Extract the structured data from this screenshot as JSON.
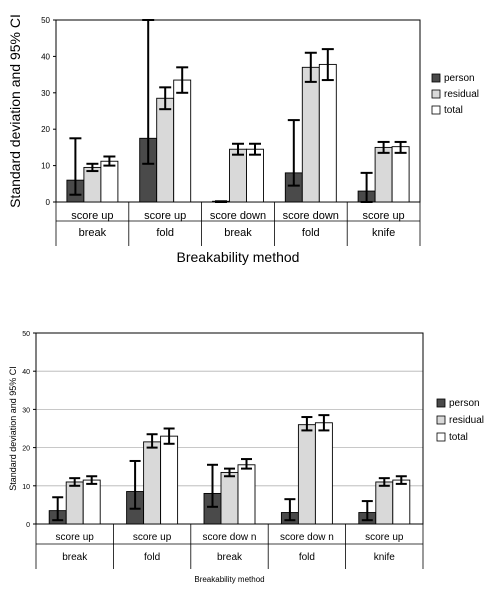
{
  "chart_data": [
    {
      "type": "bar",
      "title": "",
      "ylabel": "Standard deviation and 95% CI",
      "xlabel": "Breakability method",
      "ylim": [
        0,
        50
      ],
      "yticks": [
        0,
        10,
        20,
        30,
        40,
        50
      ],
      "grid": false,
      "legend_position": "right",
      "categories": [
        {
          "top": "score up",
          "bottom": "break"
        },
        {
          "top": "score up",
          "bottom": "fold"
        },
        {
          "top": "score down",
          "bottom": "break"
        },
        {
          "top": "score down",
          "bottom": "fold"
        },
        {
          "top": "score up",
          "bottom": "knife"
        }
      ],
      "series": [
        {
          "name": "person",
          "color": "#4a4a4a",
          "values": [
            6,
            17.5,
            0.2,
            8,
            3
          ],
          "ci_low": [
            2,
            10.5,
            0,
            4.5,
            0
          ],
          "ci_high": [
            17.5,
            50,
            0.2,
            22.5,
            8
          ]
        },
        {
          "name": "residual",
          "color": "#d9d9d9",
          "values": [
            9.5,
            28.5,
            14.5,
            37,
            15
          ],
          "ci_low": [
            8.5,
            25.5,
            13,
            33,
            13.5
          ],
          "ci_high": [
            10.5,
            31.5,
            16,
            41,
            16.5
          ]
        },
        {
          "name": "total",
          "color": "#ffffff",
          "values": [
            11.2,
            33.5,
            14.5,
            37.8,
            15.2
          ],
          "ci_low": [
            10,
            30,
            13,
            33.5,
            13.5
          ],
          "ci_high": [
            12.5,
            37,
            16,
            42,
            16.5
          ]
        }
      ]
    },
    {
      "type": "bar",
      "title": "",
      "ylabel": "Standard deviation and 95% CI",
      "xlabel": "Breakability method",
      "ylim": [
        0,
        50
      ],
      "yticks": [
        0,
        10,
        20,
        30,
        40,
        50
      ],
      "grid": true,
      "legend_position": "right",
      "categories": [
        {
          "top": "score up",
          "bottom": "break"
        },
        {
          "top": "score up",
          "bottom": "fold"
        },
        {
          "top": "score dow n",
          "bottom": "break"
        },
        {
          "top": "score dow n",
          "bottom": "fold"
        },
        {
          "top": "score up",
          "bottom": "knife"
        }
      ],
      "series": [
        {
          "name": "person",
          "color": "#4a4a4a",
          "values": [
            3.5,
            8.5,
            8,
            3,
            3
          ],
          "ci_low": [
            1,
            4,
            4.5,
            1,
            1
          ],
          "ci_high": [
            7,
            16.5,
            15.5,
            6.5,
            6
          ]
        },
        {
          "name": "residual",
          "color": "#d9d9d9",
          "values": [
            11,
            21.5,
            13.5,
            26,
            11
          ],
          "ci_low": [
            10,
            20,
            12.5,
            24.5,
            10
          ],
          "ci_high": [
            12,
            23.5,
            14.5,
            28,
            12
          ]
        },
        {
          "name": "total",
          "color": "#ffffff",
          "values": [
            11.5,
            23,
            15.5,
            26.5,
            11.5
          ],
          "ci_low": [
            10.5,
            21,
            14.5,
            24.5,
            10.5
          ],
          "ci_high": [
            12.5,
            25,
            17,
            28.5,
            12.5
          ]
        }
      ]
    }
  ]
}
